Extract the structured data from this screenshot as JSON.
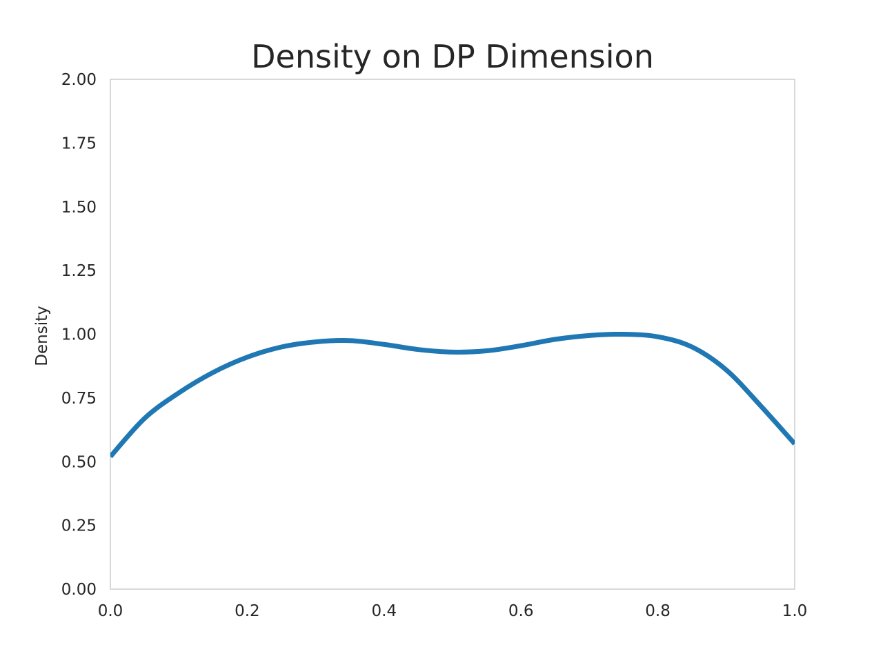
{
  "chart_data": {
    "type": "line",
    "title": "Density on DP Dimension",
    "xlabel": "",
    "ylabel": "Density",
    "xlim": [
      0.0,
      1.0
    ],
    "ylim": [
      0.0,
      2.0
    ],
    "x_ticks": [
      "0.0",
      "0.2",
      "0.4",
      "0.6",
      "0.8",
      "1.0"
    ],
    "y_ticks": [
      "0.00",
      "0.25",
      "0.50",
      "0.75",
      "1.00",
      "1.25",
      "1.50",
      "1.75",
      "2.00"
    ],
    "grid": false,
    "legend": "none",
    "series": [
      {
        "color": "#1f77b4",
        "x": [
          0.0,
          0.05,
          0.1,
          0.15,
          0.2,
          0.25,
          0.3,
          0.35,
          0.4,
          0.45,
          0.5,
          0.55,
          0.6,
          0.65,
          0.7,
          0.75,
          0.8,
          0.85,
          0.9,
          0.95,
          1.0
        ],
        "y": [
          0.52,
          0.67,
          0.77,
          0.85,
          0.91,
          0.95,
          0.97,
          0.975,
          0.96,
          0.94,
          0.93,
          0.935,
          0.955,
          0.98,
          0.995,
          1.0,
          0.99,
          0.95,
          0.86,
          0.72,
          0.57
        ]
      }
    ],
    "frame_color": "#cccccc",
    "text_color": "#262626"
  }
}
